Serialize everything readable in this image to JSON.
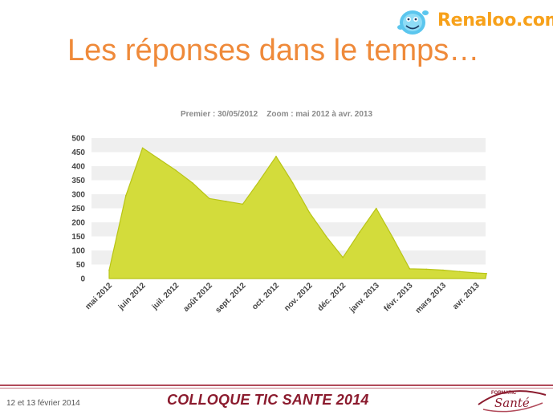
{
  "slide": {
    "title": "Les réponses dans le temps…",
    "logo_text": "Renaloo.com",
    "footer_date": "12 et 13 février 2014",
    "footer_title": "COLLOQUE TIC SANTE 2014",
    "footer_logo_small": "FORMATIC",
    "footer_logo_big": "Santé"
  },
  "chart_data": {
    "type": "area",
    "subtitle": "Premier : 30/05/2012    Zoom : mai 2012 à avr. 2013",
    "categories": [
      "mai 2012",
      "juin 2012",
      "juil. 2012",
      "août 2012",
      "sept. 2012",
      "oct. 2012",
      "nov. 2012",
      "déc. 2012",
      "janv. 2013",
      "févr. 2013",
      "mars 2013",
      "avr. 2013"
    ],
    "yticks": [
      0,
      50,
      100,
      150,
      200,
      250,
      300,
      350,
      400,
      450,
      500
    ],
    "ylim": [
      0,
      500
    ],
    "series": [
      {
        "x": [
          0,
          0.5,
          1,
          1.5,
          2,
          2.5,
          3,
          3.5,
          4,
          4.5,
          5,
          5.5,
          6,
          6.5,
          7,
          7.5,
          8,
          8.5,
          9,
          9.5,
          10,
          10.5,
          11,
          11.3
        ],
        "values": [
          30,
          295,
          465,
          425,
          385,
          340,
          285,
          275,
          265,
          348,
          435,
          340,
          235,
          150,
          75,
          165,
          250,
          145,
          35,
          33,
          30,
          25,
          20,
          18
        ]
      }
    ],
    "colors": {
      "fill": "#d3dc3b",
      "stroke": "#b8c416",
      "plot_band": "#efefef",
      "axis_text": "#444444"
    },
    "grid": true
  }
}
